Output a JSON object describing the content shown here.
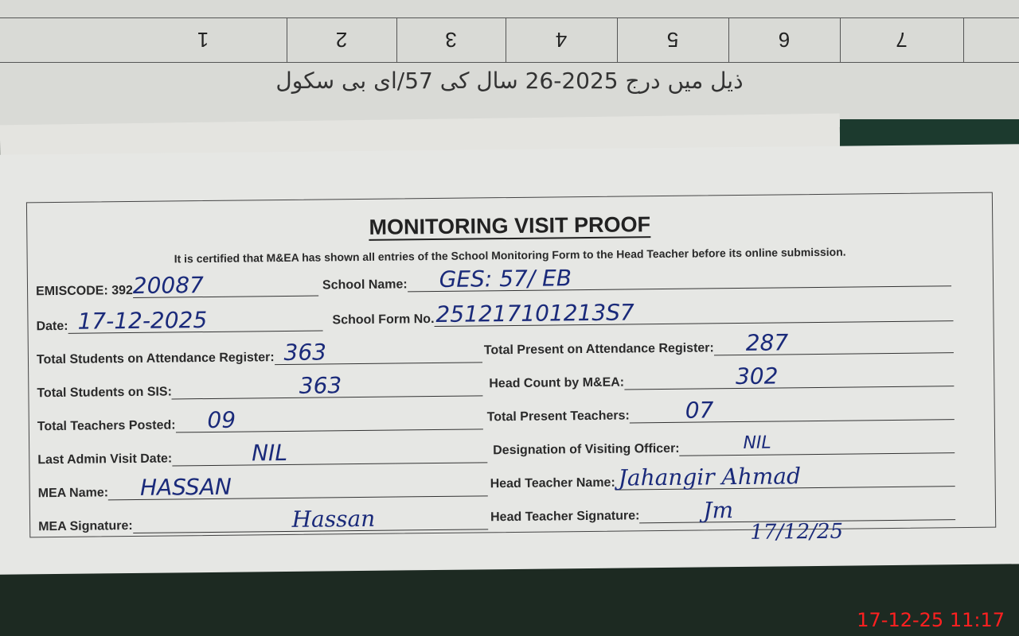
{
  "background_sheet": {
    "table_numbers": [
      "7",
      "6",
      "5",
      "4",
      "3",
      "2",
      "1"
    ],
    "urdu_line": "ذیل میں درج 2025-26 سال کی 57/ای بی سکول"
  },
  "form": {
    "title": "MONITORING VISIT PROOF",
    "certification": "It is certified that M&EA has shown all entries of the School Monitoring Form to the Head Teacher before its online submission.",
    "fields": {
      "emiscode": {
        "label": "EMISCODE: 392",
        "value": "20087"
      },
      "school_name": {
        "label": "School Name:",
        "value": "GES: 57/ EB"
      },
      "date": {
        "label": "Date:",
        "value": "17-12-2025"
      },
      "school_form_no": {
        "label": "School Form No.",
        "value": "251217101213S7"
      },
      "students_attendance": {
        "label": "Total Students on Attendance Register:",
        "value": "363"
      },
      "present_attendance": {
        "label": "Total Present on Attendance Register:",
        "value": "287"
      },
      "students_sis": {
        "label": "Total Students on SIS:",
        "value": "363"
      },
      "head_count": {
        "label": "Head Count by M&EA:",
        "value": "302"
      },
      "teachers_posted": {
        "label": "Total Teachers Posted:",
        "value": "09"
      },
      "present_teachers": {
        "label": "Total Present Teachers:",
        "value": "07"
      },
      "last_admin_visit": {
        "label": "Last Admin Visit Date:",
        "value": "NIL"
      },
      "designation": {
        "label": "Designation of Visiting Officer:",
        "value": "NIL"
      },
      "mea_name": {
        "label": "MEA Name:",
        "value": "HASSAN"
      },
      "head_teacher_name": {
        "label": "Head Teacher Name:",
        "value": "Jahangir Ahmad"
      },
      "mea_signature": {
        "label": "MEA Signature:",
        "value": "Hassan"
      },
      "head_teacher_signature": {
        "label": "Head Teacher Signature:",
        "value": "Jm",
        "date": "17/12/25"
      }
    }
  },
  "camera_timestamp": "17-12-25  11:17",
  "colors": {
    "ink": "#1a2a7a",
    "timestamp": "#ff2020"
  }
}
